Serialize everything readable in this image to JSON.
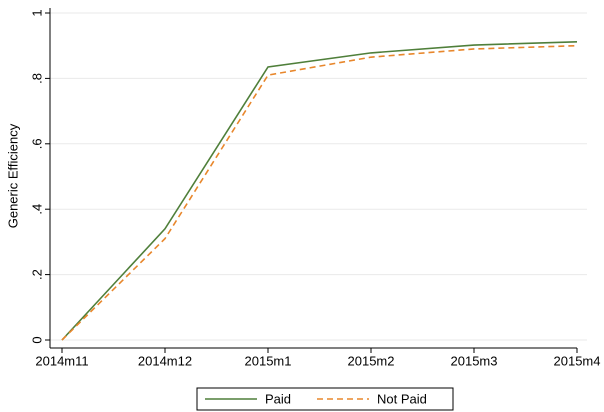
{
  "chart_data": {
    "type": "line",
    "y_label": "Generic Efficiency",
    "categories": [
      "2014m11",
      "2014m12",
      "2015m1",
      "2015m2",
      "2015m3",
      "2015m4"
    ],
    "series": [
      {
        "name": "Paid",
        "color": "#4f7f3a",
        "linestyle": "solid",
        "values": [
          0,
          0.34,
          0.835,
          0.878,
          0.902,
          0.912
        ]
      },
      {
        "name": "Not Paid",
        "color": "#e8872c",
        "linestyle": "dashed",
        "values": [
          0,
          0.31,
          0.81,
          0.865,
          0.89,
          0.9
        ]
      }
    ],
    "ylim": [
      0,
      1
    ],
    "yticks": [
      0,
      {
        "value": 0.2,
        "label": ".2"
      },
      {
        "value": 0.4,
        "label": ".4"
      },
      {
        "value": 0.6,
        "label": ".6"
      },
      {
        "value": 0.8,
        "label": ".8"
      },
      1
    ],
    "grid": true,
    "legend": "bottom"
  }
}
